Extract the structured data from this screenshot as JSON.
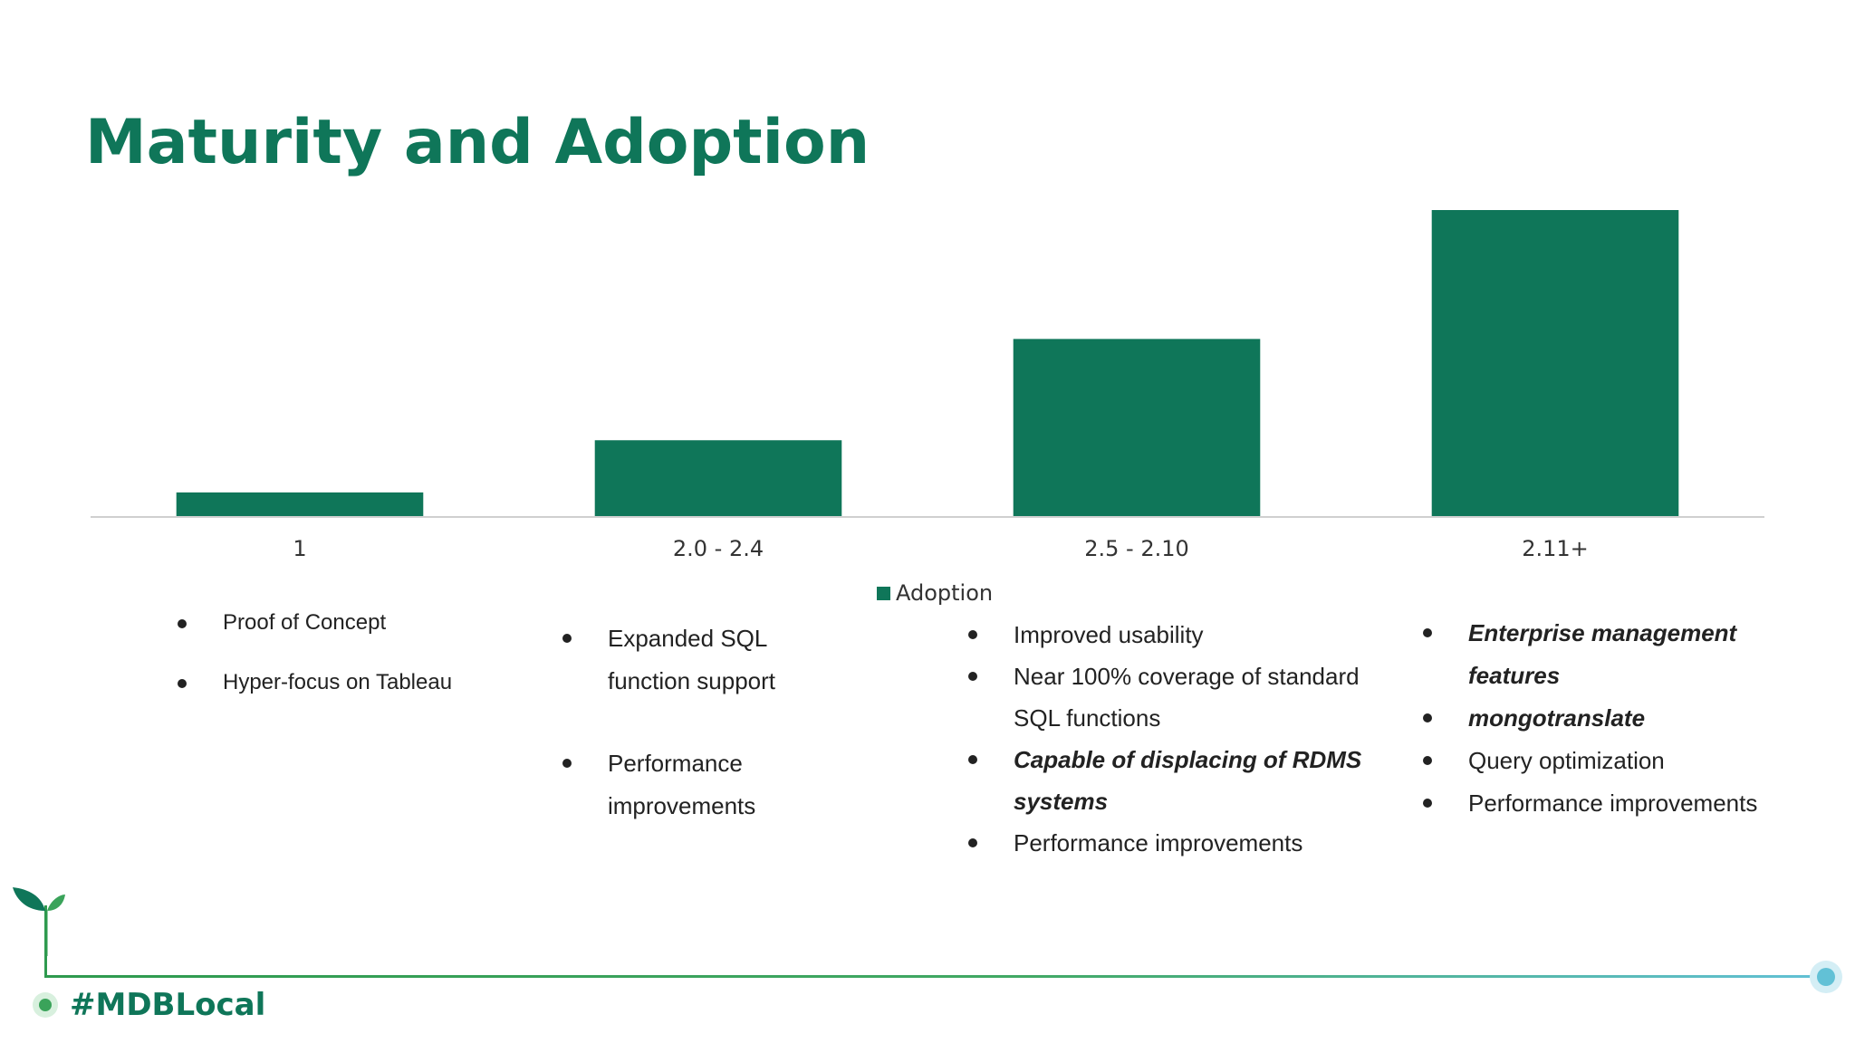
{
  "slide": {
    "title": "Maturity and Adoption",
    "hashtag": "#MDBLocal"
  },
  "colors": {
    "bar": "#0f7659",
    "title": "#0f7659",
    "axis": "#d0d0d0",
    "footer_green": "#2e9a4e",
    "footer_blue": "#62c1d6"
  },
  "chart_data": {
    "type": "bar",
    "title": "",
    "xlabel": "",
    "ylabel": "",
    "categories": [
      "1",
      "2.0 - 2.4",
      "2.5 - 2.10",
      "2.11+"
    ],
    "series": [
      {
        "name": "Adoption",
        "values": [
          8,
          25,
          58,
          100
        ]
      }
    ],
    "ylim": [
      0,
      100
    ],
    "grid": false,
    "legend": "bottom-center"
  },
  "notes": [
    {
      "items": [
        {
          "text": "Proof of Concept",
          "emphasis": false
        },
        {
          "text": "Hyper-focus on Tableau",
          "emphasis": false
        }
      ]
    },
    {
      "items": [
        {
          "text": "Expanded SQL function support",
          "emphasis": false
        },
        {
          "text": "Performance improvements",
          "emphasis": false
        }
      ]
    },
    {
      "items": [
        {
          "text": "Improved usability",
          "emphasis": false
        },
        {
          "text": "Near 100% coverage of standard SQL functions",
          "emphasis": false
        },
        {
          "text": "Capable of displacing of RDMS systems",
          "emphasis": true
        },
        {
          "text": "Performance improvements",
          "emphasis": false
        }
      ]
    },
    {
      "items": [
        {
          "text": "Enterprise management features",
          "emphasis": true
        },
        {
          "text": "mongotranslate",
          "emphasis": true
        },
        {
          "text": "Query optimization",
          "emphasis": false
        },
        {
          "text": "Performance improvements",
          "emphasis": false
        }
      ]
    }
  ]
}
